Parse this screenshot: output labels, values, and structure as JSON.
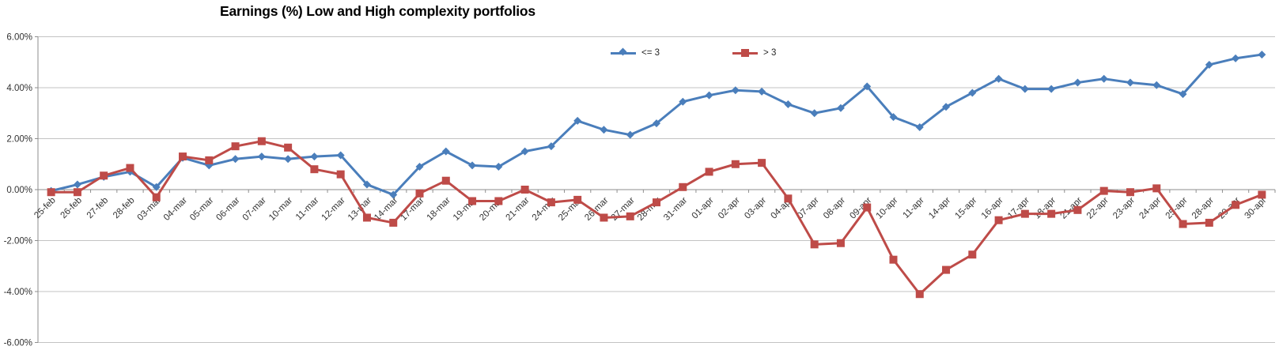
{
  "chart_data": {
    "type": "line",
    "title": "Earnings (%) Low and High complexity portfolios",
    "xlabel": "",
    "ylabel": "",
    "ylim": [
      -6,
      6
    ],
    "grid": "horizontal",
    "legend_position": "top-center",
    "y_ticks": [
      {
        "value": 6,
        "label": "6.00%"
      },
      {
        "value": 4,
        "label": "4.00%"
      },
      {
        "value": 2,
        "label": "2.00%"
      },
      {
        "value": 0,
        "label": "0.00%"
      },
      {
        "value": -2,
        "label": "-2.00%"
      },
      {
        "value": -4,
        "label": "-4.00%"
      },
      {
        "value": -6,
        "label": "-6.00%"
      }
    ],
    "categories": [
      "25-feb",
      "26-feb",
      "27-feb",
      "28-feb",
      "03-mar",
      "04-mar",
      "05-mar",
      "06-mar",
      "07-mar",
      "10-mar",
      "11-mar",
      "12-mar",
      "13-mar",
      "14-mar",
      "17-mar",
      "18-mar",
      "19-mar",
      "20-mar",
      "21-mar",
      "24-mar",
      "25-mar",
      "26-mar",
      "27-mar",
      "28-mar",
      "31-mar",
      "01-apr",
      "02-apr",
      "03-apr",
      "04-apr",
      "07-apr",
      "08-apr",
      "09-apr",
      "10-apr",
      "11-apr",
      "14-apr",
      "15-apr",
      "16-apr",
      "17-apr",
      "18-apr",
      "21-apr",
      "22-apr",
      "23-apr",
      "24-apr",
      "25-apr",
      "28-apr",
      "29-apr",
      "30-apr"
    ],
    "series": [
      {
        "name": "<= 3",
        "color": "#4A7EBB",
        "marker": "diamond",
        "values": [
          -0.05,
          0.2,
          0.5,
          0.7,
          0.1,
          1.25,
          0.95,
          1.2,
          1.3,
          1.2,
          1.3,
          1.35,
          0.2,
          -0.2,
          0.9,
          1.5,
          0.95,
          0.9,
          1.5,
          1.7,
          2.7,
          2.35,
          2.15,
          2.6,
          3.45,
          3.7,
          3.9,
          3.85,
          3.35,
          3.0,
          3.2,
          4.05,
          2.85,
          2.45,
          3.25,
          3.8,
          4.35,
          3.95,
          3.95,
          4.2,
          4.35,
          4.2,
          4.1,
          3.75,
          4.9,
          5.15,
          5.3
        ]
      },
      {
        "name": "> 3",
        "color": "#BE4B48",
        "marker": "square",
        "values": [
          -0.1,
          -0.1,
          0.55,
          0.85,
          -0.3,
          1.3,
          1.15,
          1.7,
          1.9,
          1.65,
          0.8,
          0.6,
          -1.1,
          -1.3,
          -0.15,
          0.35,
          -0.45,
          -0.45,
          0.0,
          -0.5,
          -0.4,
          -1.1,
          -1.05,
          -0.5,
          0.1,
          0.7,
          1.0,
          1.05,
          -0.35,
          -2.15,
          -2.1,
          -0.7,
          -2.75,
          -4.1,
          -3.15,
          -2.55,
          -1.2,
          -0.95,
          -0.95,
          -0.8,
          -0.05,
          -0.1,
          0.05,
          -1.35,
          -1.3,
          -0.6,
          -0.2
        ]
      }
    ]
  }
}
